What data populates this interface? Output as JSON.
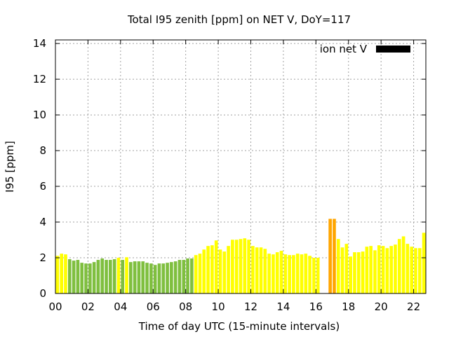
{
  "chart_data": {
    "type": "bar",
    "title": "Total I95 zenith [ppm] on NET V, DoY=117",
    "xlabel": "Time of day UTC (15-minute intervals)",
    "ylabel": "I95 [ppm]",
    "xlim": [
      0,
      22.75
    ],
    "ylim": [
      0,
      14.2
    ],
    "x_ticks": [
      "00",
      "02",
      "04",
      "06",
      "08",
      "10",
      "12",
      "14",
      "16",
      "18",
      "20",
      "22"
    ],
    "y_ticks": [
      "0",
      "2",
      "4",
      "6",
      "8",
      "10",
      "12",
      "14"
    ],
    "grid": true,
    "legend": {
      "label": "ion net V",
      "placement": "top-right",
      "color": "#000000"
    },
    "colors": {
      "yellow": "#ffff00",
      "green": "#7fbf3f",
      "orange": "#ffa500"
    },
    "series": [
      {
        "x": [
          0,
          0.25,
          0.5,
          0.75,
          1,
          1.25,
          1.5,
          1.75,
          2,
          2.25,
          2.5,
          2.75,
          3,
          3.25,
          3.5,
          3.75,
          4,
          4.25,
          4.5,
          4.75,
          5,
          5.25,
          5.5,
          5.75,
          6,
          6.25,
          6.5,
          6.75,
          7,
          7.25,
          7.5,
          7.75,
          8,
          8.25,
          8.5,
          8.75,
          9,
          9.25,
          9.5,
          9.75,
          10,
          10.25,
          10.5,
          10.75,
          11,
          11.25,
          11.5,
          11.75,
          12,
          12.25,
          12.5,
          12.75,
          13,
          13.25,
          13.5,
          13.75,
          14,
          14.25,
          14.5,
          14.75,
          15,
          15.25,
          15.5,
          15.75,
          16,
          16.25,
          16.5,
          16.75,
          17,
          17.25,
          17.5,
          17.75,
          18,
          18.25,
          18.5,
          18.75,
          19,
          19.25,
          19.5,
          19.75,
          20,
          20.25,
          20.5,
          20.75,
          21,
          21.25,
          21.5,
          21.75,
          22,
          22.25,
          22.5
        ],
        "values": [
          2.11,
          2.23,
          2.19,
          1.92,
          1.84,
          1.88,
          1.72,
          1.68,
          1.68,
          1.76,
          1.88,
          1.96,
          1.88,
          1.88,
          1.92,
          2.0,
          1.88,
          2.03,
          1.76,
          1.8,
          1.8,
          1.8,
          1.72,
          1.68,
          1.6,
          1.68,
          1.68,
          1.72,
          1.76,
          1.8,
          1.88,
          1.88,
          1.96,
          1.96,
          2.15,
          2.23,
          2.46,
          2.66,
          2.7,
          2.97,
          2.46,
          2.35,
          2.66,
          3.01,
          3.01,
          3.05,
          3.09,
          3.01,
          2.66,
          2.58,
          2.58,
          2.5,
          2.23,
          2.19,
          2.31,
          2.39,
          2.19,
          2.15,
          2.15,
          2.23,
          2.19,
          2.23,
          2.11,
          2.0,
          2.0,
          null,
          null,
          4.18,
          4.18,
          3.05,
          2.58,
          2.78,
          2.07,
          2.31,
          2.31,
          2.35,
          2.62,
          2.66,
          2.42,
          2.7,
          2.66,
          2.54,
          2.66,
          2.74,
          3.05,
          3.2,
          2.78,
          2.62,
          2.54,
          2.54,
          3.4
        ],
        "bar_colors": [
          "yellow",
          "yellow",
          "yellow",
          "green",
          "green",
          "green",
          "green",
          "green",
          "green",
          "green",
          "green",
          "green",
          "green",
          "green",
          "green",
          "yellow",
          "green",
          "yellow",
          "green",
          "green",
          "green",
          "green",
          "green",
          "green",
          "green",
          "green",
          "green",
          "green",
          "green",
          "green",
          "green",
          "green",
          "green",
          "green",
          "yellow",
          "yellow",
          "yellow",
          "yellow",
          "yellow",
          "yellow",
          "yellow",
          "yellow",
          "yellow",
          "yellow",
          "yellow",
          "yellow",
          "yellow",
          "yellow",
          "yellow",
          "yellow",
          "yellow",
          "yellow",
          "yellow",
          "yellow",
          "yellow",
          "yellow",
          "yellow",
          "yellow",
          "yellow",
          "yellow",
          "yellow",
          "yellow",
          "yellow",
          "yellow",
          "yellow",
          "yellow",
          "yellow",
          "orange",
          "orange",
          "yellow",
          "yellow",
          "yellow",
          "yellow",
          "yellow",
          "yellow",
          "yellow",
          "yellow",
          "yellow",
          "yellow",
          "yellow",
          "yellow",
          "yellow",
          "yellow",
          "yellow",
          "yellow",
          "yellow",
          "yellow",
          "yellow",
          "yellow",
          "yellow",
          "yellow"
        ]
      }
    ]
  }
}
